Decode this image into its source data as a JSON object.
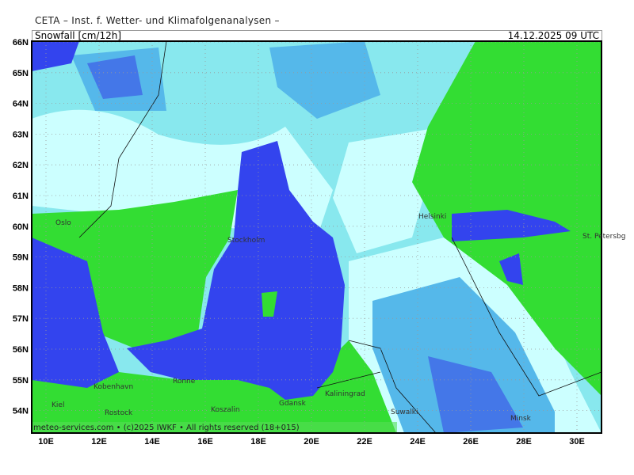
{
  "header": {
    "institute": "CETA – Inst. f. Wetter- und Klimafolgenanalysen –",
    "parameter": "Snowfall [cm/12h]",
    "valid_time": "14.12.2025 09 UTC"
  },
  "footer": "meteo-services.com • (c)2025 IWKF • All rights reserved (18+015)",
  "lat_labels": [
    "66N",
    "65N",
    "64N",
    "63N",
    "62N",
    "61N",
    "60N",
    "59N",
    "58N",
    "57N",
    "56N",
    "55N",
    "54N"
  ],
  "lon_labels": [
    "10E",
    "12E",
    "14E",
    "16E",
    "18E",
    "20E",
    "22E",
    "24E",
    "26E",
    "28E",
    "30E"
  ],
  "cities": [
    {
      "name": "Oslo"
    },
    {
      "name": "Stockholm"
    },
    {
      "name": "Helsinki"
    },
    {
      "name": "St. Petersbg"
    },
    {
      "name": "Kobenhavn"
    },
    {
      "name": "Ronne"
    },
    {
      "name": "Kaliningrad"
    },
    {
      "name": "Gdansk"
    },
    {
      "name": "Koszalin"
    },
    {
      "name": "Kiel"
    },
    {
      "name": "Rostock"
    },
    {
      "name": "Suwalki"
    },
    {
      "name": "Minsk"
    }
  ],
  "colors": {
    "land_no_snow": "#33dd33",
    "sea": "#3344ee",
    "snow_light": "#ccffff",
    "snow_mid": "#88e8ee",
    "snow_high": "#55b8ea",
    "snow_max": "#4477e8"
  }
}
